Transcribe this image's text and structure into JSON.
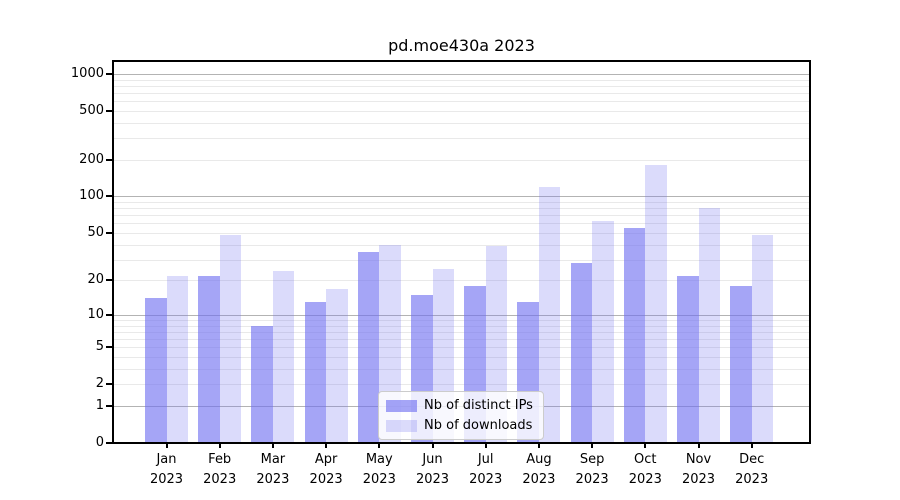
{
  "figure": {
    "background": "#ffffff",
    "axis_color": "#000000"
  },
  "chart_data": {
    "type": "bar",
    "title": "pd.moe430a 2023",
    "categories": [
      "Jan",
      "Feb",
      "Mar",
      "Apr",
      "May",
      "Jun",
      "Jul",
      "Aug",
      "Sep",
      "Oct",
      "Nov",
      "Dec"
    ],
    "x_tick_year": "2023",
    "x_axis": {
      "tick_labels": [
        "Jan 2023",
        "Feb 2023",
        "Mar 2023",
        "Apr 2023",
        "May 2023",
        "Jun 2023",
        "Jul 2023",
        "Aug 2023",
        "Sep 2023",
        "Oct 2023",
        "Nov 2023",
        "Dec 2023"
      ]
    },
    "series": [
      {
        "name": "Nb of distinct IPs",
        "color": "rgba(110,110,240,0.62)",
        "values": [
          14,
          22,
          8,
          13,
          35,
          15,
          18,
          13,
          28,
          55,
          22,
          18
        ]
      },
      {
        "name": "Nb of downloads",
        "color": "rgba(110,110,240,0.25)",
        "values": [
          22,
          48,
          24,
          17,
          40,
          25,
          39,
          120,
          63,
          180,
          80,
          48
        ]
      }
    ],
    "y_axis": {
      "scale": "log1p",
      "tick_values": [
        0,
        1,
        2,
        5,
        10,
        20,
        50,
        100,
        200,
        500,
        1000
      ],
      "ylim": [
        0,
        1275
      ]
    },
    "grid": {
      "enabled": true,
      "major_color": "#b3b3b3",
      "minor_color": "#e9e9e9"
    },
    "legend": {
      "position": "lower-center",
      "entries": [
        "Nb of distinct IPs",
        "Nb of downloads"
      ]
    }
  }
}
